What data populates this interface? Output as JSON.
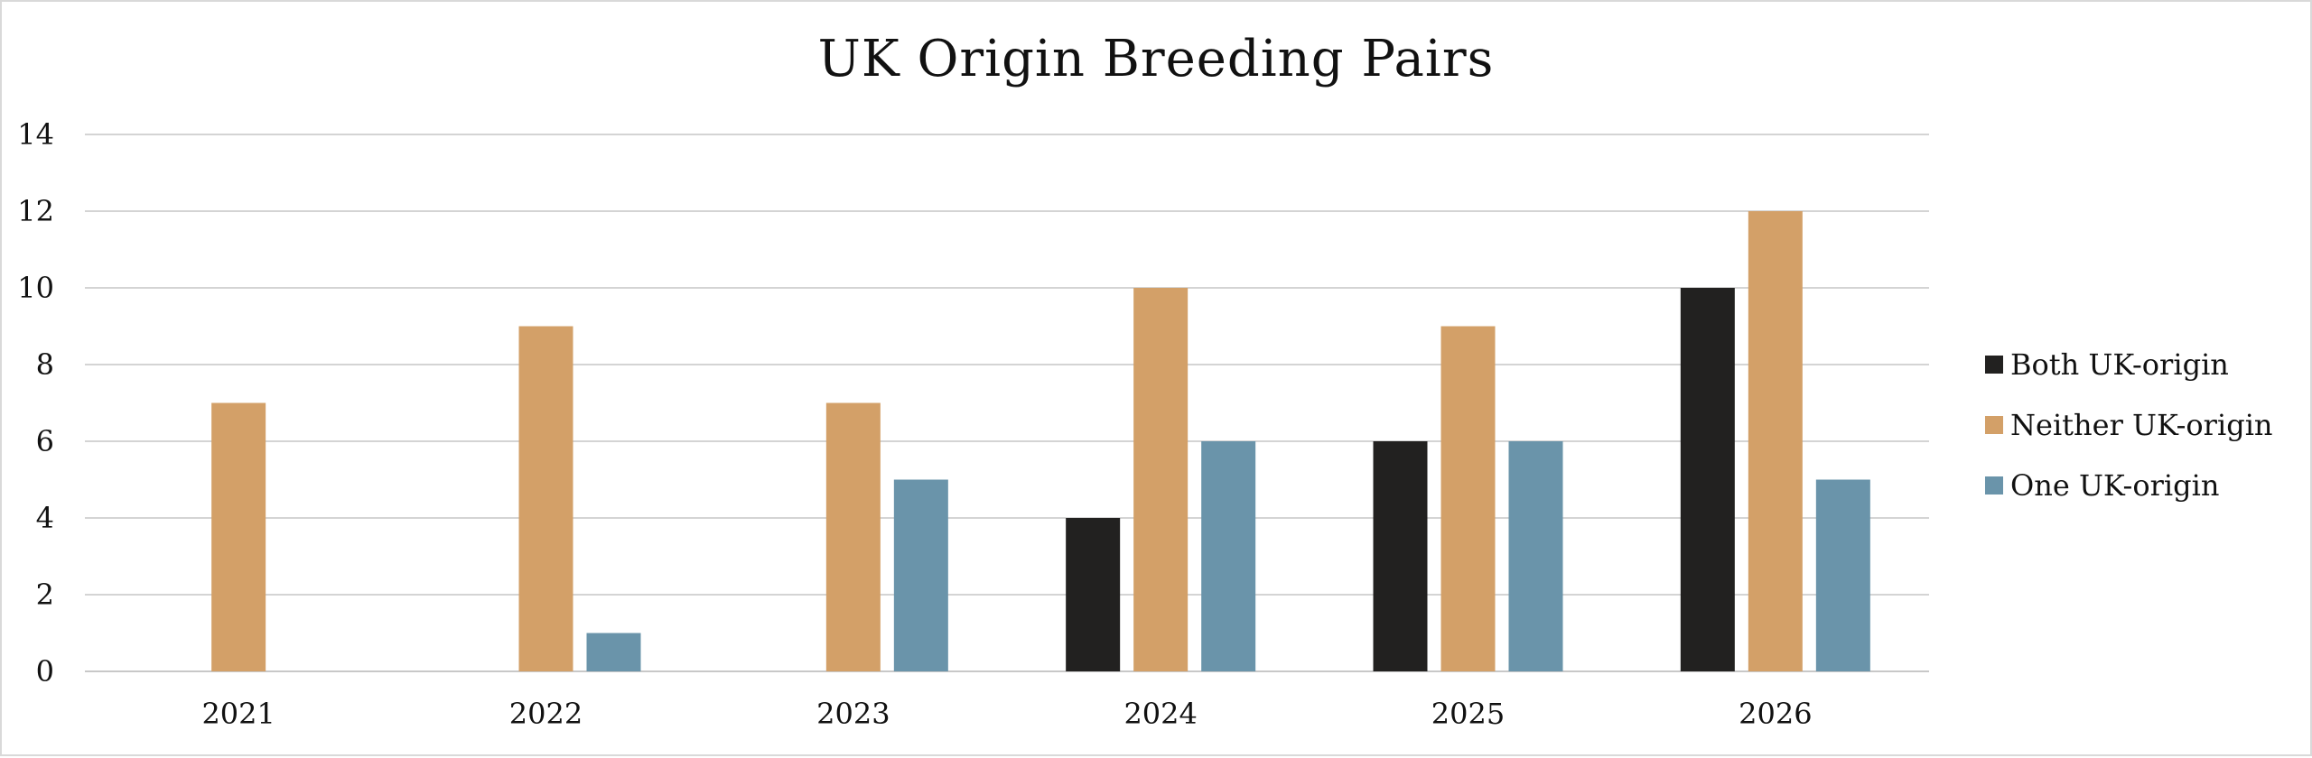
{
  "chart_data": {
    "type": "bar",
    "title": "UK Origin Breeding Pairs",
    "categories": [
      "2021",
      "2022",
      "2023",
      "2024",
      "2025",
      "2026"
    ],
    "series": [
      {
        "name": "Both UK-origin",
        "values": [
          0,
          0,
          0,
          4,
          6,
          10
        ],
        "color": "#222120"
      },
      {
        "name": "Neither UK-origin",
        "values": [
          7,
          9,
          7,
          10,
          9,
          12
        ],
        "color": "#d3a068"
      },
      {
        "name": "One UK-origin",
        "values": [
          0,
          1,
          5,
          6,
          6,
          5
        ],
        "color": "#6a94aa"
      }
    ],
    "ylim": [
      0,
      14
    ],
    "yticks": [
      0,
      2,
      4,
      6,
      8,
      10,
      12,
      14
    ],
    "grid": true,
    "legend_position": "right"
  }
}
